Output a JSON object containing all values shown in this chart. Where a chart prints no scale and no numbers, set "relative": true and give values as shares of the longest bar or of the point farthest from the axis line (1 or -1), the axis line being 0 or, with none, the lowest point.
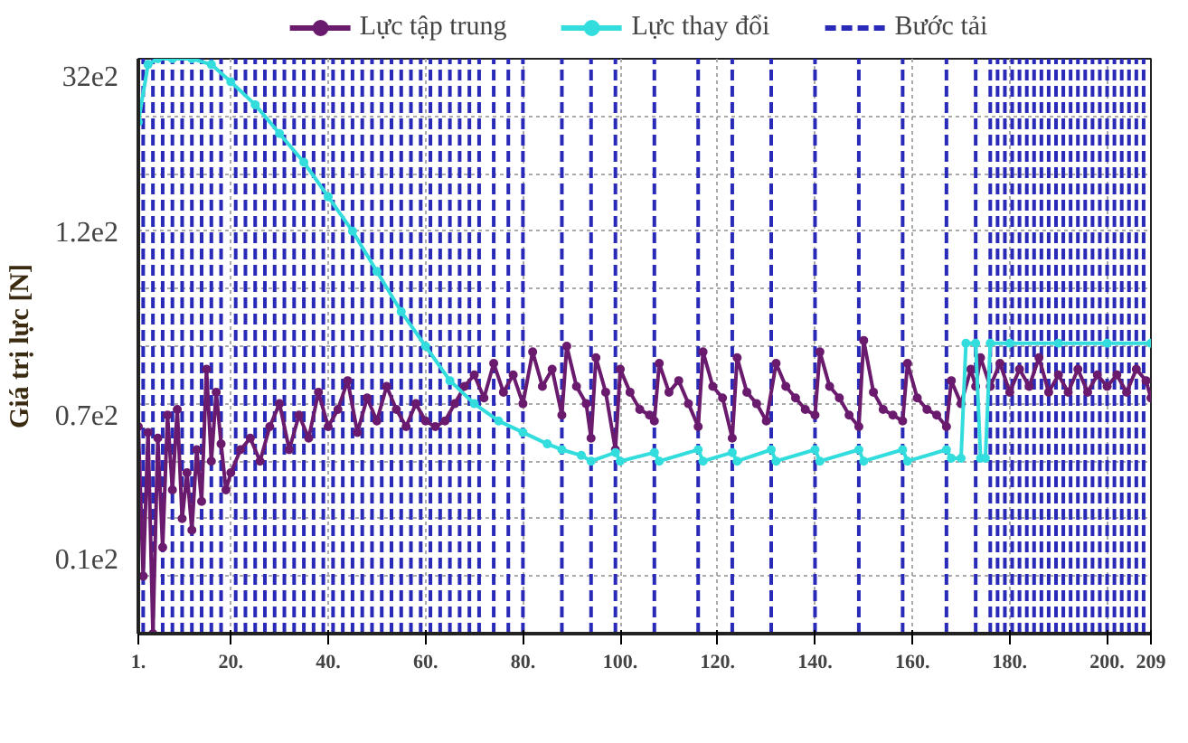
{
  "chart_data": {
    "type": "line",
    "ylabel": "Giá trị lực [N]",
    "relative": true,
    "annotations": [
      "32e2",
      "1.2e2",
      "0.7e2",
      "0.1e2"
    ],
    "xlim": [
      1,
      209
    ],
    "xticks": [
      {
        "value": 1,
        "label": "1."
      },
      {
        "value": 20,
        "label": "20."
      },
      {
        "value": 40,
        "label": "40."
      },
      {
        "value": 60,
        "label": "60."
      },
      {
        "value": 80,
        "label": "80."
      },
      {
        "value": 100,
        "label": "100."
      },
      {
        "value": 120,
        "label": "120."
      },
      {
        "value": 140,
        "label": "140."
      },
      {
        "value": 160,
        "label": "160."
      },
      {
        "value": 180,
        "label": "180."
      },
      {
        "value": 200,
        "label": "200."
      },
      {
        "value": 209,
        "label": "209"
      }
    ],
    "grid": true,
    "legend": "top",
    "marker": "circle",
    "series": [
      {
        "name": "Lực tập trung",
        "color": "#6a1b6e",
        "x": [
          1,
          2,
          3,
          4,
          5,
          6,
          7,
          8,
          9,
          10,
          11,
          12,
          13,
          14,
          15,
          16,
          17,
          18,
          19,
          20,
          22,
          24,
          26,
          28,
          30,
          32,
          34,
          36,
          38,
          40,
          42,
          44,
          46,
          48,
          50,
          52,
          54,
          56,
          58,
          60,
          62,
          64,
          66,
          68,
          70,
          72,
          74,
          76,
          78,
          80,
          82,
          84,
          86,
          88,
          89,
          91,
          93,
          94,
          95,
          97,
          99,
          100,
          102,
          104,
          106,
          107,
          108,
          110,
          112,
          114,
          116,
          117,
          119,
          121,
          123,
          124,
          126,
          128,
          130,
          132,
          134,
          136,
          138,
          140,
          141,
          143,
          145,
          147,
          149,
          150,
          152,
          154,
          156,
          158,
          159,
          161,
          163,
          165,
          167,
          168,
          170,
          172,
          173,
          174,
          176,
          178,
          180,
          182,
          184,
          186,
          188,
          190,
          192,
          194,
          196,
          198,
          200,
          202,
          204,
          206,
          208,
          209
        ],
        "values": [
          0.36,
          0.1,
          0.35,
          0.0,
          0.34,
          0.15,
          0.38,
          0.25,
          0.39,
          0.2,
          0.28,
          0.18,
          0.32,
          0.23,
          0.46,
          0.3,
          0.42,
          0.33,
          0.25,
          0.28,
          0.32,
          0.34,
          0.3,
          0.36,
          0.4,
          0.32,
          0.38,
          0.34,
          0.42,
          0.36,
          0.39,
          0.44,
          0.35,
          0.41,
          0.37,
          0.43,
          0.39,
          0.36,
          0.4,
          0.37,
          0.36,
          0.37,
          0.4,
          0.43,
          0.45,
          0.41,
          0.47,
          0.42,
          0.45,
          0.4,
          0.49,
          0.43,
          0.46,
          0.38,
          0.5,
          0.43,
          0.4,
          0.34,
          0.48,
          0.42,
          0.32,
          0.46,
          0.42,
          0.39,
          0.38,
          0.37,
          0.47,
          0.42,
          0.44,
          0.4,
          0.36,
          0.49,
          0.43,
          0.41,
          0.34,
          0.48,
          0.42,
          0.4,
          0.37,
          0.47,
          0.43,
          0.41,
          0.39,
          0.38,
          0.49,
          0.43,
          0.41,
          0.38,
          0.36,
          0.51,
          0.42,
          0.39,
          0.38,
          0.37,
          0.47,
          0.41,
          0.39,
          0.38,
          0.36,
          0.44,
          0.4,
          0.46,
          0.43,
          0.48,
          0.43,
          0.47,
          0.42,
          0.46,
          0.43,
          0.48,
          0.42,
          0.45,
          0.42,
          0.46,
          0.42,
          0.45,
          0.43,
          0.45,
          0.42,
          0.46,
          0.44,
          0.41
        ]
      },
      {
        "name": "Lực thay đổi",
        "color": "#33dddd",
        "x": [
          1,
          3,
          5,
          8,
          12,
          16,
          20,
          25,
          30,
          35,
          40,
          45,
          50,
          55,
          60,
          65,
          70,
          75,
          80,
          85,
          88,
          92,
          94,
          99,
          100,
          107,
          108,
          116,
          117,
          123,
          124,
          131,
          132,
          140,
          141,
          149,
          150,
          158,
          159,
          167,
          168,
          170,
          171,
          173,
          174,
          175,
          176,
          180,
          190,
          200,
          209
        ],
        "values": [
          0.89,
          0.99,
          1.0,
          1.0,
          1.0,
          0.99,
          0.96,
          0.92,
          0.87,
          0.82,
          0.76,
          0.7,
          0.63,
          0.56,
          0.5,
          0.44,
          0.4,
          0.37,
          0.35,
          0.33,
          0.32,
          0.31,
          0.3,
          0.315,
          0.3,
          0.315,
          0.3,
          0.32,
          0.3,
          0.315,
          0.3,
          0.32,
          0.3,
          0.32,
          0.3,
          0.32,
          0.3,
          0.32,
          0.3,
          0.32,
          0.305,
          0.305,
          0.505,
          0.505,
          0.305,
          0.305,
          0.505,
          0.505,
          0.505,
          0.505,
          0.505
        ]
      }
    ],
    "ref_lines": [
      {
        "axis": "x",
        "value": 2,
        "label": "Bước tải",
        "color": "#2a2ab8",
        "line_style": "dashed"
      },
      {
        "axis": "x",
        "value": 4,
        "color": "#2a2ab8",
        "line_style": "dashed"
      },
      {
        "axis": "x",
        "value": 6,
        "color": "#2a2ab8",
        "line_style": "dashed"
      },
      {
        "axis": "x",
        "value": 8,
        "color": "#2a2ab8",
        "line_style": "dashed"
      },
      {
        "axis": "x",
        "value": 10,
        "color": "#2a2ab8",
        "line_style": "dashed"
      },
      {
        "axis": "x",
        "value": 12,
        "color": "#2a2ab8",
        "line_style": "dashed"
      },
      {
        "axis": "x",
        "value": 14,
        "color": "#2a2ab8",
        "line_style": "dashed"
      },
      {
        "axis": "x",
        "value": 16,
        "color": "#2a2ab8",
        "line_style": "dashed"
      },
      {
        "axis": "x",
        "value": 18,
        "color": "#2a2ab8",
        "line_style": "dashed"
      },
      {
        "axis": "x",
        "value": 21,
        "color": "#2a2ab8",
        "line_style": "dashed"
      },
      {
        "axis": "x",
        "value": 23,
        "color": "#2a2ab8",
        "line_style": "dashed"
      },
      {
        "axis": "x",
        "value": 25,
        "color": "#2a2ab8",
        "line_style": "dashed"
      },
      {
        "axis": "x",
        "value": 27,
        "color": "#2a2ab8",
        "line_style": "dashed"
      },
      {
        "axis": "x",
        "value": 29,
        "color": "#2a2ab8",
        "line_style": "dashed"
      },
      {
        "axis": "x",
        "value": 31,
        "color": "#2a2ab8",
        "line_style": "dashed"
      },
      {
        "axis": "x",
        "value": 33,
        "color": "#2a2ab8",
        "line_style": "dashed"
      },
      {
        "axis": "x",
        "value": 35,
        "color": "#2a2ab8",
        "line_style": "dashed"
      },
      {
        "axis": "x",
        "value": 37,
        "color": "#2a2ab8",
        "line_style": "dashed"
      },
      {
        "axis": "x",
        "value": 39,
        "color": "#2a2ab8",
        "line_style": "dashed"
      },
      {
        "axis": "x",
        "value": 41,
        "color": "#2a2ab8",
        "line_style": "dashed"
      },
      {
        "axis": "x",
        "value": 43,
        "color": "#2a2ab8",
        "line_style": "dashed"
      },
      {
        "axis": "x",
        "value": 45,
        "color": "#2a2ab8",
        "line_style": "dashed"
      },
      {
        "axis": "x",
        "value": 47,
        "color": "#2a2ab8",
        "line_style": "dashed"
      },
      {
        "axis": "x",
        "value": 49,
        "color": "#2a2ab8",
        "line_style": "dashed"
      },
      {
        "axis": "x",
        "value": 51,
        "color": "#2a2ab8",
        "line_style": "dashed"
      },
      {
        "axis": "x",
        "value": 53,
        "color": "#2a2ab8",
        "line_style": "dashed"
      },
      {
        "axis": "x",
        "value": 55,
        "color": "#2a2ab8",
        "line_style": "dashed"
      },
      {
        "axis": "x",
        "value": 57,
        "color": "#2a2ab8",
        "line_style": "dashed"
      },
      {
        "axis": "x",
        "value": 59,
        "color": "#2a2ab8",
        "line_style": "dashed"
      },
      {
        "axis": "x",
        "value": 61,
        "color": "#2a2ab8",
        "line_style": "dashed"
      },
      {
        "axis": "x",
        "value": 63,
        "color": "#2a2ab8",
        "line_style": "dashed"
      },
      {
        "axis": "x",
        "value": 65,
        "color": "#2a2ab8",
        "line_style": "dashed"
      },
      {
        "axis": "x",
        "value": 67,
        "color": "#2a2ab8",
        "line_style": "dashed"
      },
      {
        "axis": "x",
        "value": 69,
        "color": "#2a2ab8",
        "line_style": "dashed"
      },
      {
        "axis": "x",
        "value": 71,
        "color": "#2a2ab8",
        "line_style": "dashed"
      },
      {
        "axis": "x",
        "value": 74,
        "color": "#2a2ab8",
        "line_style": "dashed"
      },
      {
        "axis": "x",
        "value": 77,
        "color": "#2a2ab8",
        "line_style": "dashed"
      },
      {
        "axis": "x",
        "value": 80,
        "color": "#2a2ab8",
        "line_style": "dashed"
      },
      {
        "axis": "x",
        "value": 88,
        "color": "#2a2ab8",
        "line_style": "dashed"
      },
      {
        "axis": "x",
        "value": 94,
        "color": "#2a2ab8",
        "line_style": "dashed"
      },
      {
        "axis": "x",
        "value": 99,
        "color": "#2a2ab8",
        "line_style": "dashed"
      },
      {
        "axis": "x",
        "value": 107,
        "color": "#2a2ab8",
        "line_style": "dashed"
      },
      {
        "axis": "x",
        "value": 116,
        "color": "#2a2ab8",
        "line_style": "dashed"
      },
      {
        "axis": "x",
        "value": 123,
        "color": "#2a2ab8",
        "line_style": "dashed"
      },
      {
        "axis": "x",
        "value": 131,
        "color": "#2a2ab8",
        "line_style": "dashed"
      },
      {
        "axis": "x",
        "value": 140,
        "color": "#2a2ab8",
        "line_style": "dashed"
      },
      {
        "axis": "x",
        "value": 149,
        "color": "#2a2ab8",
        "line_style": "dashed"
      },
      {
        "axis": "x",
        "value": 158,
        "color": "#2a2ab8",
        "line_style": "dashed"
      },
      {
        "axis": "x",
        "value": 167,
        "color": "#2a2ab8",
        "line_style": "dashed"
      },
      {
        "axis": "x",
        "value": 173,
        "color": "#2a2ab8",
        "line_style": "dashed"
      },
      {
        "axis": "x",
        "value": 176,
        "color": "#2a2ab8",
        "line_style": "dashed"
      },
      {
        "axis": "x",
        "value": 177.5,
        "color": "#2a2ab8",
        "line_style": "dashed"
      },
      {
        "axis": "x",
        "value": 179,
        "color": "#2a2ab8",
        "line_style": "dashed"
      },
      {
        "axis": "x",
        "value": 180.5,
        "color": "#2a2ab8",
        "line_style": "dashed"
      },
      {
        "axis": "x",
        "value": 182,
        "color": "#2a2ab8",
        "line_style": "dashed"
      },
      {
        "axis": "x",
        "value": 183.5,
        "color": "#2a2ab8",
        "line_style": "dashed"
      },
      {
        "axis": "x",
        "value": 185,
        "color": "#2a2ab8",
        "line_style": "dashed"
      },
      {
        "axis": "x",
        "value": 186.5,
        "color": "#2a2ab8",
        "line_style": "dashed"
      },
      {
        "axis": "x",
        "value": 188,
        "color": "#2a2ab8",
        "line_style": "dashed"
      },
      {
        "axis": "x",
        "value": 189.5,
        "color": "#2a2ab8",
        "line_style": "dashed"
      },
      {
        "axis": "x",
        "value": 191,
        "color": "#2a2ab8",
        "line_style": "dashed"
      },
      {
        "axis": "x",
        "value": 192.5,
        "color": "#2a2ab8",
        "line_style": "dashed"
      },
      {
        "axis": "x",
        "value": 194,
        "color": "#2a2ab8",
        "line_style": "dashed"
      },
      {
        "axis": "x",
        "value": 195.5,
        "color": "#2a2ab8",
        "line_style": "dashed"
      },
      {
        "axis": "x",
        "value": 197,
        "color": "#2a2ab8",
        "line_style": "dashed"
      },
      {
        "axis": "x",
        "value": 198.5,
        "color": "#2a2ab8",
        "line_style": "dashed"
      },
      {
        "axis": "x",
        "value": 200,
        "color": "#2a2ab8",
        "line_style": "dashed"
      },
      {
        "axis": "x",
        "value": 201.5,
        "color": "#2a2ab8",
        "line_style": "dashed"
      },
      {
        "axis": "x",
        "value": 203,
        "color": "#2a2ab8",
        "line_style": "dashed"
      },
      {
        "axis": "x",
        "value": 204.5,
        "color": "#2a2ab8",
        "line_style": "dashed"
      },
      {
        "axis": "x",
        "value": 206,
        "color": "#2a2ab8",
        "line_style": "dashed"
      },
      {
        "axis": "x",
        "value": 207.5,
        "color": "#2a2ab8",
        "line_style": "dashed"
      }
    ]
  }
}
